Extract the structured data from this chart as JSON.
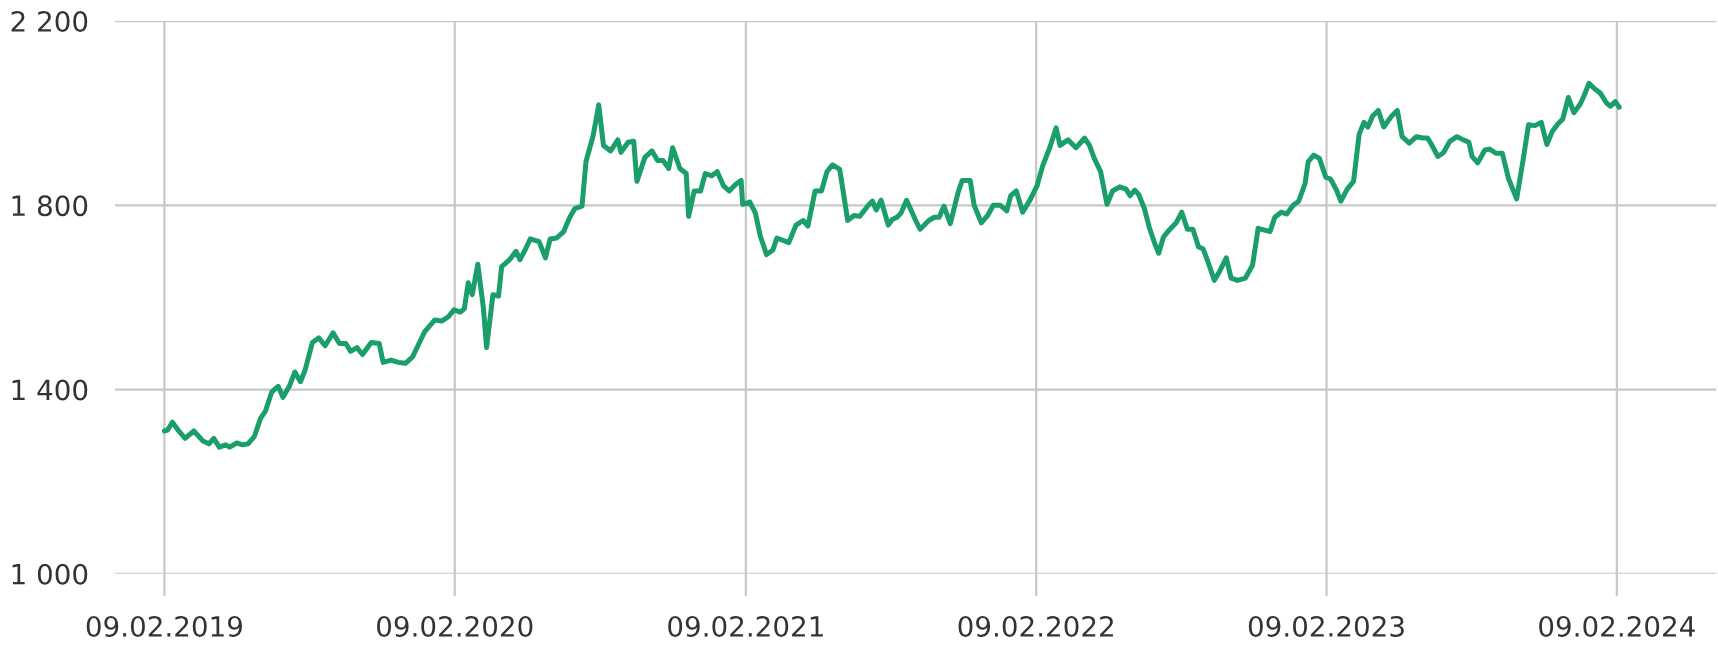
{
  "chart_data": {
    "type": "line",
    "x": [
      "2019-02-09",
      "2019-02-13",
      "2019-02-19",
      "2019-02-27",
      "2019-03-07",
      "2019-03-18",
      "2019-03-29",
      "2019-04-06",
      "2019-04-12",
      "2019-04-19",
      "2019-04-27",
      "2019-05-02",
      "2019-05-11",
      "2019-05-18",
      "2019-05-25",
      "2019-06-02",
      "2019-06-10",
      "2019-06-16",
      "2019-06-24",
      "2019-07-02",
      "2019-07-08",
      "2019-07-16",
      "2019-07-23",
      "2019-07-30",
      "2019-08-05",
      "2019-08-14",
      "2019-08-22",
      "2019-08-30",
      "2019-09-09",
      "2019-09-17",
      "2019-09-25",
      "2019-10-01",
      "2019-10-09",
      "2019-10-16",
      "2019-10-27",
      "2019-11-06",
      "2019-11-11",
      "2019-11-21",
      "2019-11-30",
      "2019-12-09",
      "2019-12-18",
      "2020-01-02",
      "2020-01-15",
      "2020-01-24",
      "2020-02-01",
      "2020-02-08",
      "2020-02-16",
      "2020-02-21",
      "2020-02-26",
      "2020-03-02",
      "2020-03-09",
      "2020-03-16",
      "2020-03-20",
      "2020-03-28",
      "2020-04-04",
      "2020-04-08",
      "2020-04-18",
      "2020-04-26",
      "2020-05-01",
      "2020-05-08",
      "2020-05-14",
      "2020-05-25",
      "2020-06-02",
      "2020-06-08",
      "2020-06-16",
      "2020-06-25",
      "2020-07-02",
      "2020-07-09",
      "2020-07-18",
      "2020-07-23",
      "2020-08-01",
      "2020-08-08",
      "2020-08-14",
      "2020-08-23",
      "2020-09-01",
      "2020-09-05",
      "2020-09-14",
      "2020-09-21",
      "2020-09-25",
      "2020-10-05",
      "2020-10-14",
      "2020-10-21",
      "2020-10-28",
      "2020-11-04",
      "2020-11-09",
      "2020-11-18",
      "2020-11-26",
      "2020-11-29",
      "2020-12-06",
      "2020-12-14",
      "2020-12-20",
      "2020-12-28",
      "2021-01-04",
      "2021-01-12",
      "2021-01-19",
      "2021-01-27",
      "2021-02-03",
      "2021-02-05",
      "2021-02-14",
      "2021-02-21",
      "2021-02-27",
      "2021-03-07",
      "2021-03-15",
      "2021-03-20",
      "2021-04-04",
      "2021-04-13",
      "2021-04-22",
      "2021-04-28",
      "2021-05-07",
      "2021-05-15",
      "2021-05-22",
      "2021-05-29",
      "2021-06-07",
      "2021-06-17",
      "2021-06-25",
      "2021-07-02",
      "2021-07-13",
      "2021-07-18",
      "2021-07-23",
      "2021-07-29",
      "2021-08-07",
      "2021-08-12",
      "2021-08-18",
      "2021-08-23",
      "2021-08-30",
      "2021-09-10",
      "2021-09-16",
      "2021-09-27",
      "2021-10-04",
      "2021-10-10",
      "2021-10-16",
      "2021-10-24",
      "2021-11-03",
      "2021-11-08",
      "2021-11-18",
      "2021-11-23",
      "2021-12-02",
      "2021-12-10",
      "2021-12-17",
      "2021-12-26",
      "2022-01-03",
      "2022-01-08",
      "2022-01-15",
      "2022-01-23",
      "2022-02-02",
      "2022-02-10",
      "2022-02-17",
      "2022-02-26",
      "2022-03-06",
      "2022-03-11",
      "2022-03-21",
      "2022-03-31",
      "2022-04-11",
      "2022-04-17",
      "2022-04-23",
      "2022-05-01",
      "2022-05-09",
      "2022-05-16",
      "2022-05-25",
      "2022-06-02",
      "2022-06-07",
      "2022-06-13",
      "2022-06-18",
      "2022-06-25",
      "2022-07-01",
      "2022-07-08",
      "2022-07-13",
      "2022-07-19",
      "2022-07-26",
      "2022-08-04",
      "2022-08-11",
      "2022-08-18",
      "2022-08-25",
      "2022-09-01",
      "2022-09-07",
      "2022-09-14",
      "2022-09-21",
      "2022-09-28",
      "2022-10-06",
      "2022-10-12",
      "2022-10-20",
      "2022-10-30",
      "2022-11-08",
      "2022-11-15",
      "2022-11-23",
      "2022-11-30",
      "2022-12-06",
      "2022-12-14",
      "2022-12-21",
      "2022-12-29",
      "2023-01-05",
      "2023-01-13",
      "2023-01-17",
      "2023-01-24",
      "2023-01-31",
      "2023-02-08",
      "2023-02-14",
      "2023-02-21",
      "2023-02-27",
      "2023-03-07",
      "2023-03-15",
      "2023-03-22",
      "2023-03-28",
      "2023-04-02",
      "2023-04-08",
      "2023-04-15",
      "2023-04-22",
      "2023-05-01",
      "2023-05-09",
      "2023-05-15",
      "2023-05-24",
      "2023-06-02",
      "2023-06-10",
      "2023-06-16",
      "2023-06-21",
      "2023-06-29",
      "2023-07-06",
      "2023-07-14",
      "2023-07-23",
      "2023-07-31",
      "2023-08-07",
      "2023-08-11",
      "2023-08-18",
      "2023-08-27",
      "2023-09-02",
      "2023-09-10",
      "2023-09-18",
      "2023-09-26",
      "2023-10-06",
      "2023-10-14",
      "2023-10-21",
      "2023-10-29",
      "2023-11-06",
      "2023-11-13",
      "2023-11-20",
      "2023-11-27",
      "2023-12-03",
      "2023-12-10",
      "2023-12-17",
      "2023-12-25",
      "2023-12-30",
      "2024-01-05",
      "2024-01-12",
      "2024-01-19",
      "2024-01-27",
      "2024-02-01",
      "2024-02-07",
      "2024-02-12"
    ],
    "series": [
      {
        "color": "#1a9e6a",
        "values": [
          1310,
          1312,
          1329,
          1310,
          1294,
          1310,
          1289,
          1282,
          1294,
          1275,
          1280,
          1275,
          1284,
          1280,
          1282,
          1298,
          1338,
          1353,
          1395,
          1407,
          1383,
          1407,
          1438,
          1417,
          1443,
          1502,
          1512,
          1495,
          1523,
          1500,
          1500,
          1483,
          1491,
          1476,
          1502,
          1500,
          1459,
          1464,
          1459,
          1457,
          1471,
          1525,
          1551,
          1549,
          1558,
          1573,
          1568,
          1575,
          1632,
          1606,
          1672,
          1577,
          1491,
          1606,
          1603,
          1667,
          1682,
          1700,
          1682,
          1705,
          1727,
          1721,
          1686,
          1727,
          1729,
          1743,
          1772,
          1793,
          1798,
          1895,
          1951,
          2018,
          1930,
          1918,
          1942,
          1915,
          1937,
          1939,
          1852,
          1904,
          1918,
          1897,
          1897,
          1880,
          1925,
          1880,
          1869,
          1776,
          1831,
          1831,
          1869,
          1864,
          1873,
          1842,
          1831,
          1845,
          1854,
          1802,
          1807,
          1783,
          1734,
          1693,
          1703,
          1729,
          1719,
          1757,
          1767,
          1755,
          1831,
          1831,
          1873,
          1888,
          1878,
          1767,
          1778,
          1776,
          1800,
          1809,
          1790,
          1811,
          1757,
          1769,
          1774,
          1783,
          1811,
          1769,
          1748,
          1767,
          1774,
          1774,
          1798,
          1760,
          1829,
          1854,
          1854,
          1800,
          1762,
          1778,
          1800,
          1800,
          1788,
          1821,
          1831,
          1785,
          1814,
          1842,
          1885,
          1925,
          1968,
          1930,
          1942,
          1925,
          1946,
          1930,
          1902,
          1873,
          1802,
          1831,
          1840,
          1835,
          1821,
          1833,
          1823,
          1793,
          1753,
          1717,
          1696,
          1731,
          1746,
          1762,
          1785,
          1748,
          1748,
          1710,
          1705,
          1672,
          1637,
          1658,
          1686,
          1642,
          1637,
          1642,
          1670,
          1750,
          1746,
          1743,
          1774,
          1785,
          1781,
          1800,
          1809,
          1847,
          1895,
          1909,
          1902,
          1861,
          1857,
          1835,
          1809,
          1835,
          1852,
          1954,
          1980,
          1970,
          1994,
          2006,
          1970,
          1992,
          2006,
          1949,
          1935,
          1949,
          1946,
          1946,
          1932,
          1906,
          1914,
          1939,
          1949,
          1942,
          1937,
          1906,
          1892,
          1920,
          1922,
          1913,
          1913,
          1857,
          1814,
          1897,
          1975,
          1973,
          1980,
          1932,
          1961,
          1977,
          1987,
          2034,
          2001,
          2020,
          2039,
          2065,
          2053,
          2044,
          2022,
          2015,
          2025,
          2013
        ]
      }
    ],
    "xlim": [
      "2018-12-09",
      "2024-06-13"
    ],
    "xticks": [
      {
        "value": "2019-02-09",
        "label": "09.02.2019"
      },
      {
        "value": "2020-02-09",
        "label": "09.02.2020"
      },
      {
        "value": "2021-02-09",
        "label": "09.02.2021"
      },
      {
        "value": "2022-02-09",
        "label": "09.02.2022"
      },
      {
        "value": "2023-02-09",
        "label": "09.02.2023"
      },
      {
        "value": "2024-02-09",
        "label": "09.02.2024"
      }
    ],
    "ylim": [
      1000,
      2200
    ],
    "yticks": [
      {
        "value": 1000,
        "label": "1 000"
      },
      {
        "value": 1400,
        "label": "1 400"
      },
      {
        "value": 1800,
        "label": "1 800"
      },
      {
        "value": 2200,
        "label": "2 200"
      }
    ],
    "grid": true,
    "line_style": "solid"
  }
}
